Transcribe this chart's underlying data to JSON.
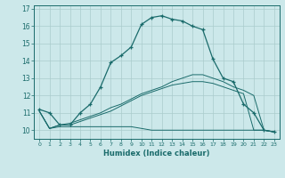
{
  "xlabel": "Humidex (Indice chaleur)",
  "bg_color": "#cce8ea",
  "grid_color": "#aacccc",
  "line_color": "#1a6b6b",
  "x_ticks": [
    0,
    1,
    2,
    3,
    4,
    5,
    6,
    7,
    8,
    9,
    10,
    11,
    12,
    13,
    14,
    15,
    16,
    17,
    18,
    19,
    20,
    21,
    22,
    23
  ],
  "y_ticks": [
    10,
    11,
    12,
    13,
    14,
    15,
    16,
    17
  ],
  "ylim": [
    9.5,
    17.2
  ],
  "xlim": [
    -0.5,
    23.5
  ],
  "line1_x": [
    0,
    1,
    2,
    3,
    4,
    5,
    6,
    7,
    8,
    9,
    10,
    11,
    12,
    13,
    14,
    15,
    16,
    17,
    18,
    19,
    20,
    21,
    22,
    23
  ],
  "line1_y": [
    11.2,
    11.0,
    10.3,
    10.3,
    11.0,
    11.5,
    12.5,
    13.9,
    14.3,
    14.8,
    16.1,
    16.5,
    16.6,
    16.4,
    16.3,
    16.0,
    15.8,
    14.1,
    13.0,
    12.8,
    11.5,
    11.0,
    10.0,
    9.9
  ],
  "line2_x": [
    0,
    1,
    2,
    3,
    4,
    5,
    6,
    7,
    8,
    9,
    10,
    11,
    12,
    13,
    14,
    15,
    16,
    17,
    18,
    19,
    20,
    21,
    22,
    23
  ],
  "line2_y": [
    11.1,
    10.1,
    10.2,
    10.2,
    10.2,
    10.2,
    10.2,
    10.2,
    10.2,
    10.2,
    10.1,
    10.0,
    10.0,
    10.0,
    10.0,
    10.0,
    10.0,
    10.0,
    10.0,
    10.0,
    10.0,
    10.0,
    10.0,
    9.9
  ],
  "line3_x": [
    0,
    1,
    2,
    3,
    4,
    5,
    6,
    7,
    8,
    9,
    10,
    11,
    12,
    13,
    14,
    15,
    16,
    17,
    18,
    19,
    20,
    21,
    22,
    23
  ],
  "line3_y": [
    11.1,
    10.1,
    10.3,
    10.4,
    10.6,
    10.8,
    11.0,
    11.3,
    11.5,
    11.8,
    12.1,
    12.3,
    12.5,
    12.8,
    13.0,
    13.2,
    13.2,
    13.0,
    12.8,
    12.5,
    12.3,
    12.0,
    10.0,
    9.9
  ],
  "line4_x": [
    0,
    1,
    2,
    3,
    4,
    5,
    6,
    7,
    8,
    9,
    10,
    11,
    12,
    13,
    14,
    15,
    16,
    17,
    18,
    19,
    20,
    21,
    22,
    23
  ],
  "line4_y": [
    11.1,
    10.1,
    10.3,
    10.3,
    10.5,
    10.7,
    10.9,
    11.1,
    11.4,
    11.7,
    12.0,
    12.2,
    12.4,
    12.6,
    12.7,
    12.8,
    12.8,
    12.7,
    12.5,
    12.3,
    12.1,
    10.0,
    10.0,
    9.9
  ]
}
